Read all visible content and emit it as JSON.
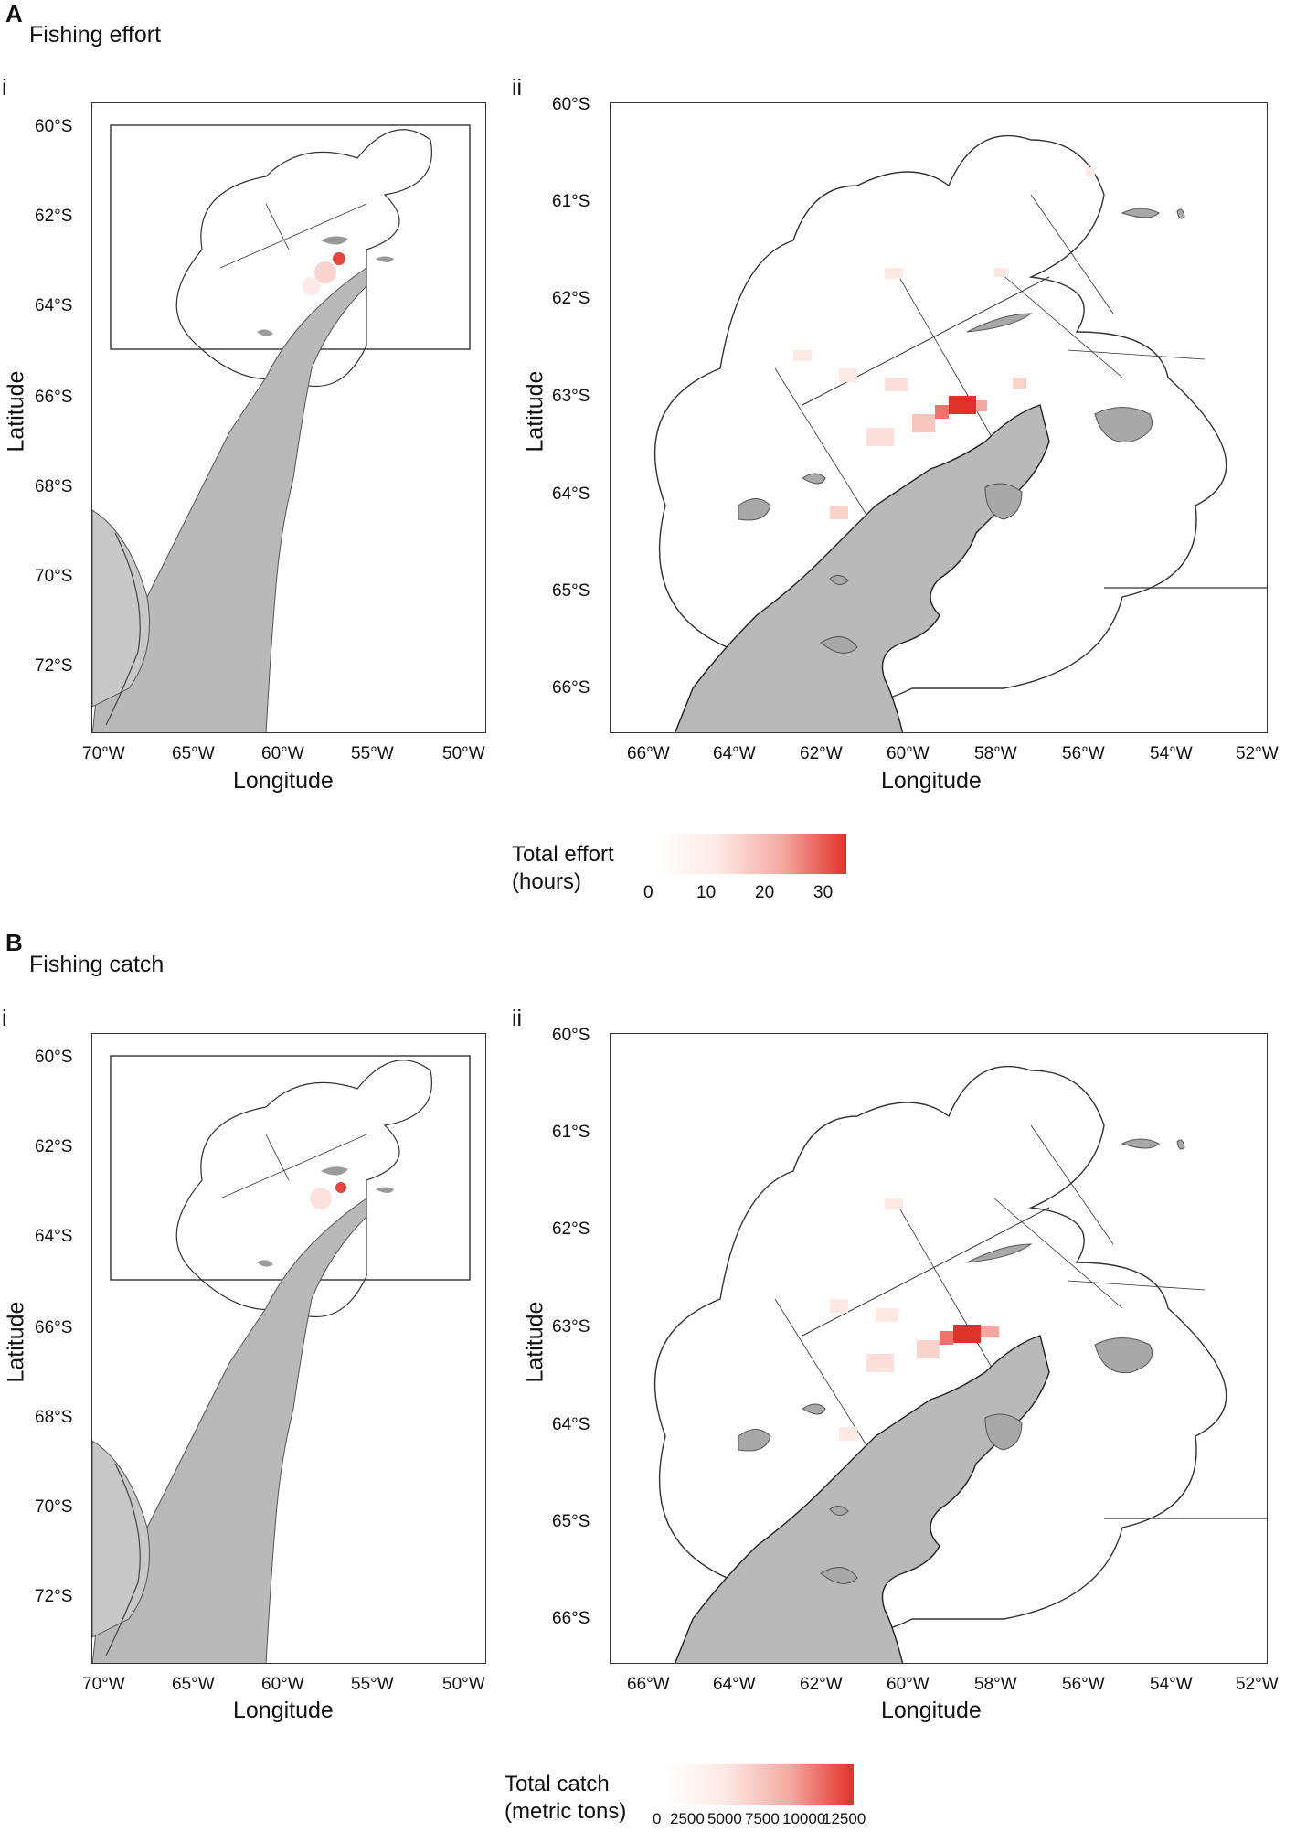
{
  "panels": [
    {
      "letter": "A",
      "title": "Fishing effort",
      "sub_i": "i",
      "sub_ii": "ii",
      "legend_title_line1": "Total effort",
      "legend_title_line2": "(hours)",
      "legend_ticks": [
        "0",
        "10",
        "20",
        "30"
      ]
    },
    {
      "letter": "B",
      "title": "Fishing catch",
      "sub_i": "i",
      "sub_ii": "ii",
      "legend_title_line1": "Total catch",
      "legend_title_line2": "(metric tons)",
      "legend_ticks": [
        "0",
        "2500",
        "5000",
        "7500",
        "10000",
        "12500"
      ]
    }
  ],
  "map_i": {
    "lat_ticks": [
      "60°S",
      "62°S",
      "64°S",
      "66°S",
      "68°S",
      "70°S",
      "72°S"
    ],
    "lon_ticks": [
      "70°W",
      "65°W",
      "60°W",
      "55°W",
      "50°W"
    ],
    "xlabel": "Longitude",
    "ylabel": "Latitude"
  },
  "map_ii": {
    "lat_ticks": [
      "60°S",
      "61°S",
      "62°S",
      "63°S",
      "64°S",
      "65°S",
      "66°S"
    ],
    "lon_ticks": [
      "66°W",
      "64°W",
      "62°W",
      "60°W",
      "58°W",
      "56°W",
      "54°W",
      "52°W"
    ],
    "xlabel": "Longitude",
    "ylabel": "Latitude"
  },
  "colors": {
    "land": "#b9b9b9",
    "land_dark": "#8c8c8c",
    "heat_low": "#fde8e4",
    "heat_high": "#e0322a",
    "outline": "#333333"
  }
}
